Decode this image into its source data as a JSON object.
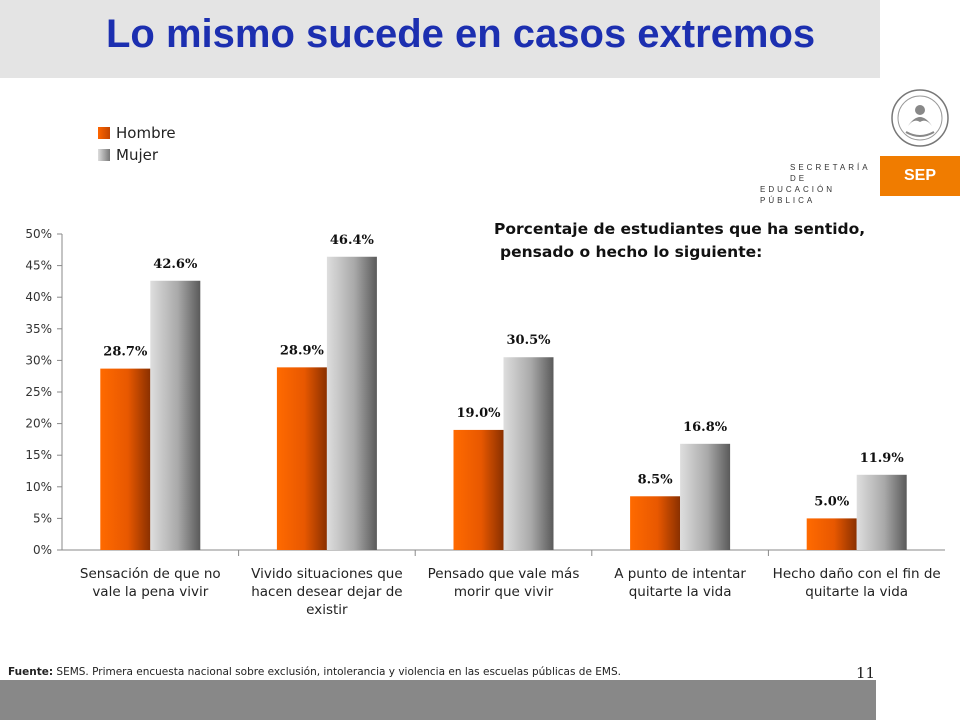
{
  "slide": {
    "title": "Lo mismo sucede en casos extremos",
    "subtitle_line1": "Porcentaje de estudiantes que ha sentido,",
    "subtitle_line2": "pensado o hecho lo siguiente:",
    "source_label": "Fuente:",
    "source_text": "SEMS. Primera encuesta nacional sobre exclusión, intolerancia y violencia en las escuelas públicas de EMS.",
    "page_number": "11"
  },
  "branding": {
    "secretaria_line1": "SECRETARÍA DE",
    "secretaria_line2": "EDUCACIÓN PÚBLICA",
    "sep_label": "SEP",
    "sep_color": "#f07c00"
  },
  "colors": {
    "title": "#1c2fb0",
    "hombre": "#ff6600",
    "mujer": "#a8a8a8"
  },
  "chart_data": {
    "type": "bar",
    "categories": [
      [
        "Sensación de que no",
        "vale la pena vivir"
      ],
      [
        "Vivido situaciones que",
        "hacen desear dejar de",
        "existir"
      ],
      [
        "Pensado que vale más",
        "morir que vivir"
      ],
      [
        "A punto de intentar",
        "quitarte la vida"
      ],
      [
        "Hecho daño con el fin de",
        "quitarte la vida"
      ]
    ],
    "series": [
      {
        "name": "Hombre",
        "values": [
          28.7,
          28.9,
          19.0,
          8.5,
          5.0
        ],
        "labels": [
          "28.7%",
          "28.9%",
          "19.0%",
          "8.5%",
          "5.0%"
        ]
      },
      {
        "name": "Mujer",
        "values": [
          42.6,
          46.4,
          30.5,
          16.8,
          11.9
        ],
        "labels": [
          "42.6%",
          "46.4%",
          "30.5%",
          "16.8%",
          "11.9%"
        ]
      }
    ],
    "ylim": [
      0,
      50
    ],
    "yticks": [
      "0%",
      "5%",
      "10%",
      "15%",
      "20%",
      "25%",
      "30%",
      "35%",
      "40%",
      "45%",
      "50%"
    ],
    "legend_position": "top-left",
    "grid": false
  }
}
